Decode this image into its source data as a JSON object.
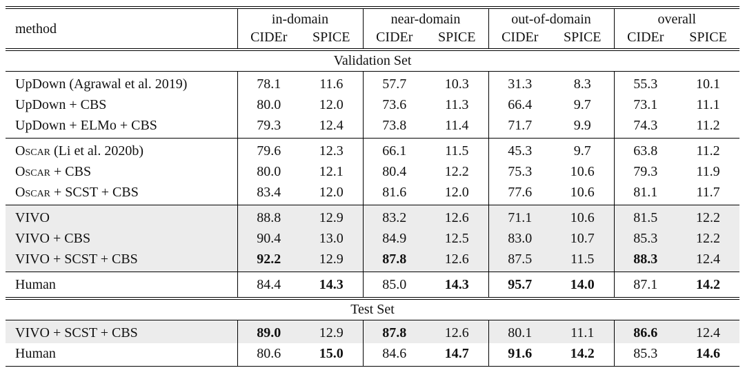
{
  "colors": {
    "highlight_row": "#ececec",
    "rule": "#000000",
    "text": "#111111",
    "background": "#ffffff"
  },
  "table": {
    "header": {
      "method_label": "method",
      "groups": [
        {
          "label": "in-domain",
          "cider": "CIDEr",
          "spice": "SPICE"
        },
        {
          "label": "near-domain",
          "cider": "CIDEr",
          "spice": "SPICE"
        },
        {
          "label": "out-of-domain",
          "cider": "CIDEr",
          "spice": "SPICE"
        },
        {
          "label": "overall",
          "cider": "CIDEr",
          "spice": "SPICE"
        }
      ]
    },
    "sections": [
      {
        "title": "Validation Set",
        "groups": [
          [
            {
              "method": "UpDown (Agrawal et al. 2019)",
              "values": [
                "78.1",
                "11.6",
                "57.7",
                "10.3",
                "31.3",
                "8.3",
                "55.3",
                "10.1"
              ],
              "bold": [],
              "highlight": false
            },
            {
              "method": "UpDown + CBS",
              "values": [
                "80.0",
                "12.0",
                "73.6",
                "11.3",
                "66.4",
                "9.7",
                "73.1",
                "11.1"
              ],
              "bold": [],
              "highlight": false
            },
            {
              "method": "UpDown + ELMo + CBS",
              "values": [
                "79.3",
                "12.4",
                "73.8",
                "11.4",
                "71.7",
                "9.9",
                "74.3",
                "11.2"
              ],
              "bold": [],
              "highlight": false
            }
          ],
          [
            {
              "method_sc": "Oscar",
              "method": " (Li et al. 2020b)",
              "values": [
                "79.6",
                "12.3",
                "66.1",
                "11.5",
                "45.3",
                "9.7",
                "63.8",
                "11.2"
              ],
              "bold": [],
              "highlight": false
            },
            {
              "method_sc": "Oscar",
              "method": " + CBS",
              "values": [
                "80.0",
                "12.1",
                "80.4",
                "12.2",
                "75.3",
                "10.6",
                "79.3",
                "11.9"
              ],
              "bold": [],
              "highlight": false
            },
            {
              "method_sc": "Oscar",
              "method": " + SCST + CBS",
              "values": [
                "83.4",
                "12.0",
                "81.6",
                "12.0",
                "77.6",
                "10.6",
                "81.1",
                "11.7"
              ],
              "bold": [],
              "highlight": false
            }
          ],
          [
            {
              "method": "VIVO",
              "values": [
                "88.8",
                "12.9",
                "83.2",
                "12.6",
                "71.1",
                "10.6",
                "81.5",
                "12.2"
              ],
              "bold": [],
              "highlight": true
            },
            {
              "method": "VIVO + CBS",
              "values": [
                "90.4",
                "13.0",
                "84.9",
                "12.5",
                "83.0",
                "10.7",
                "85.3",
                "12.2"
              ],
              "bold": [],
              "highlight": true
            },
            {
              "method": "VIVO + SCST + CBS",
              "values": [
                "92.2",
                "12.9",
                "87.8",
                "12.6",
                "87.5",
                "11.5",
                "88.3",
                "12.4"
              ],
              "bold": [
                0,
                2,
                6
              ],
              "highlight": true
            }
          ],
          [
            {
              "method": "Human",
              "values": [
                "84.4",
                "14.3",
                "85.0",
                "14.3",
                "95.7",
                "14.0",
                "87.1",
                "14.2"
              ],
              "bold": [
                1,
                3,
                4,
                5,
                7
              ],
              "highlight": false
            }
          ]
        ]
      },
      {
        "title": "Test Set",
        "groups": [
          [
            {
              "method": "VIVO + SCST + CBS",
              "values": [
                "89.0",
                "12.9",
                "87.8",
                "12.6",
                "80.1",
                "11.1",
                "86.6",
                "12.4"
              ],
              "bold": [
                0,
                2,
                6
              ],
              "highlight": true
            },
            {
              "method": "Human",
              "values": [
                "80.6",
                "15.0",
                "84.6",
                "14.7",
                "91.6",
                "14.2",
                "85.3",
                "14.6"
              ],
              "bold": [
                1,
                3,
                4,
                5,
                7
              ],
              "highlight": false
            }
          ]
        ]
      }
    ]
  }
}
